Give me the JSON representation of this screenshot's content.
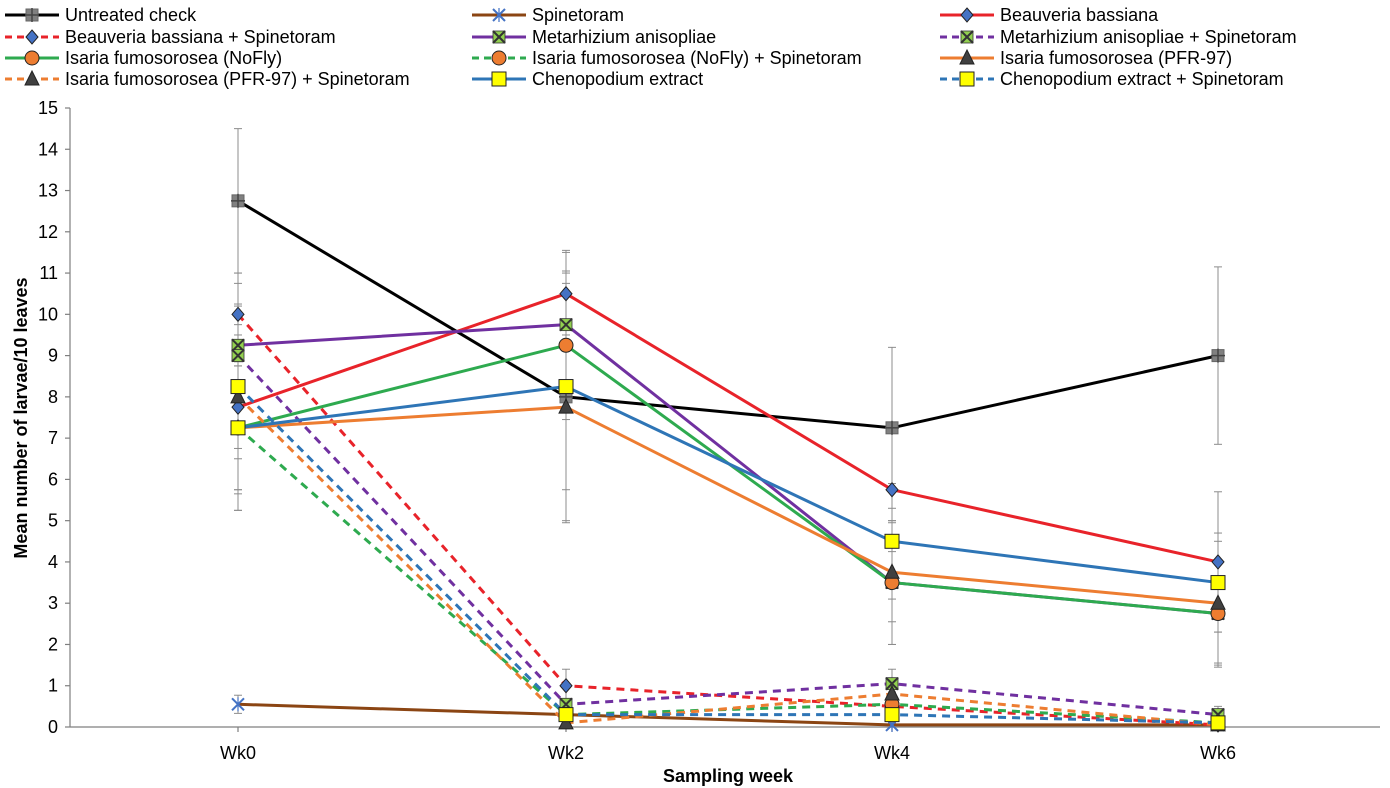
{
  "chart_data": {
    "type": "line",
    "xlabel": "Sampling week",
    "ylabel": "Mean number of larvae/10 leaves",
    "categories": [
      "Wk0",
      "Wk2",
      "Wk4",
      "Wk6"
    ],
    "ylim": [
      0,
      15
    ],
    "yticks": [
      0,
      1,
      2,
      3,
      4,
      5,
      6,
      7,
      8,
      9,
      10,
      11,
      12,
      13,
      14,
      15
    ],
    "grid": false,
    "legend_position": "top",
    "series": [
      {
        "name": "Untreated check",
        "values": [
          12.75,
          8.0,
          7.25,
          9.0
        ],
        "err": [
          1.75,
          3.0,
          1.95,
          2.15
        ],
        "color": "#000000",
        "dash": false,
        "marker": "plus-square",
        "marker_color": "#808080"
      },
      {
        "name": "Spinetoram",
        "values": [
          0.55,
          0.3,
          0.05,
          0.05
        ],
        "err": [
          0.22,
          0.1,
          0.05,
          0.05
        ],
        "color": "#8B4513",
        "dash": false,
        "marker": "asterisk",
        "marker_color": "#4472C4"
      },
      {
        "name": "Beauveria bassiana",
        "values": [
          7.75,
          10.5,
          5.75,
          4.0
        ],
        "err": [
          2.5,
          1.0,
          1.5,
          1.7
        ],
        "color": "#E8232A",
        "dash": false,
        "marker": "diamond",
        "marker_color": "#4472C4"
      },
      {
        "name": "Beauveria bassiana + Spinetoram",
        "values": [
          10.0,
          1.0,
          0.5,
          0.05
        ],
        "err": [
          1.0,
          0.4,
          0.3,
          0.05
        ],
        "color": "#E8232A",
        "dash": true,
        "marker": "diamond",
        "marker_color": "#4472C4"
      },
      {
        "name": "Metarhizium anisopliae",
        "values": [
          9.25,
          9.75,
          3.5,
          2.75
        ],
        "err": [
          1.5,
          1.8,
          1.5,
          1.3
        ],
        "color": "#7030A0",
        "dash": false,
        "marker": "x-square",
        "marker_color": "#92D050"
      },
      {
        "name": "Metarhizium anisopliae + Spinetoram",
        "values": [
          9.0,
          0.55,
          1.05,
          0.3
        ],
        "err": [
          1.2,
          0.4,
          0.35,
          0.2
        ],
        "color": "#7030A0",
        "dash": true,
        "marker": "x-square",
        "marker_color": "#92D050"
      },
      {
        "name": "Isaria fumosorosea (NoFly)",
        "values": [
          7.25,
          9.25,
          3.5,
          2.75
        ],
        "err": [
          1.5,
          1.8,
          1.5,
          1.2
        ],
        "color": "#2EAA4F",
        "dash": false,
        "marker": "circle",
        "marker_color": "#ED7D31"
      },
      {
        "name": "Isaria fumosorosea (NoFly) + Spinetoram",
        "values": [
          7.25,
          0.3,
          0.55,
          0.1
        ],
        "err": [
          1.5,
          0.2,
          0.3,
          0.1
        ],
        "color": "#2EAA4F",
        "dash": true,
        "marker": "circle",
        "marker_color": "#ED7D31"
      },
      {
        "name": "Isaria fumosorosea (PFR-97)",
        "values": [
          7.25,
          7.75,
          3.75,
          3.0
        ],
        "err": [
          2.0,
          2.8,
          1.2,
          1.5
        ],
        "color": "#ED7D31",
        "dash": false,
        "marker": "triangle",
        "marker_color": "#404040"
      },
      {
        "name": "Isaria fumosorosea (PFR-97) + Spinetoram",
        "values": [
          8.0,
          0.1,
          0.8,
          0.05
        ],
        "err": [
          1.5,
          0.1,
          0.3,
          0.05
        ],
        "color": "#ED7D31",
        "dash": true,
        "marker": "triangle",
        "marker_color": "#404040"
      },
      {
        "name": "Chenopodium extract",
        "values": [
          7.25,
          8.25,
          4.5,
          3.5
        ],
        "err": [
          1.6,
          2.5,
          1.4,
          1.2
        ],
        "color": "#2E75B6",
        "dash": false,
        "marker": "square",
        "marker_color": "#FFFF00"
      },
      {
        "name": "Chenopodium extract + Spinetoram",
        "values": [
          8.25,
          0.3,
          0.3,
          0.1
        ],
        "err": [
          1.5,
          0.2,
          0.2,
          0.1
        ],
        "color": "#2E75B6",
        "dash": true,
        "marker": "square",
        "marker_color": "#FFFF00"
      }
    ]
  }
}
